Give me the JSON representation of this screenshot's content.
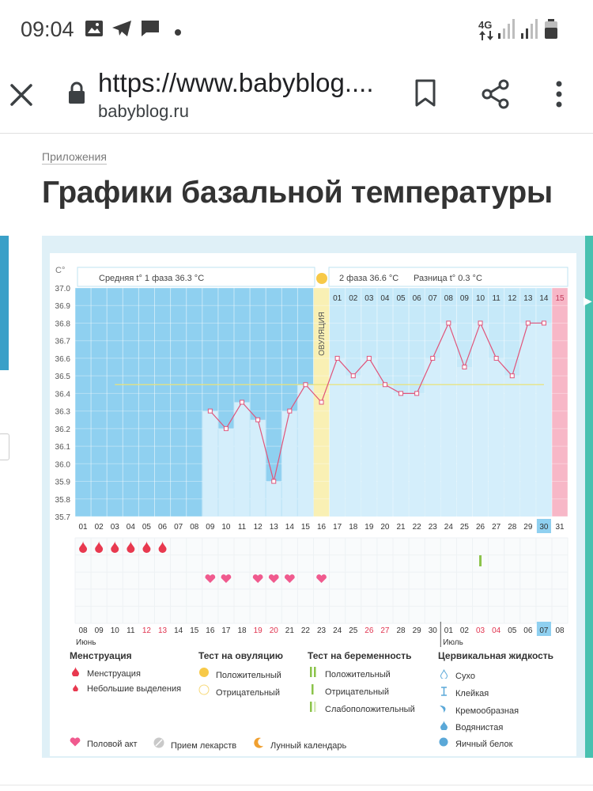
{
  "status_bar": {
    "time": "09:04",
    "network": "4G",
    "icons": [
      "gallery-icon",
      "telegram-icon",
      "message-icon",
      "dot-icon",
      "signal-icon",
      "signal-icon",
      "battery-icon"
    ]
  },
  "browser": {
    "url": "https://www.babyblog....",
    "domain": "babyblog.ru",
    "icons": [
      "close-icon",
      "lock-icon",
      "bookmark-icon",
      "share-icon",
      "more-icon"
    ]
  },
  "page": {
    "breadcrumb": "Приложения",
    "title": "Графики базальной температуры"
  },
  "chart_data": {
    "type": "line",
    "unit_label": "С°",
    "header": {
      "phase1": "Средняя t° 1 фаза 36.3 °С",
      "phase2": "2 фаза 36.6 °С",
      "diff": "Разница t° 0.3 °С"
    },
    "ovulation_label": "ОВУЛЯЦИЯ",
    "ylim": [
      35.7,
      37.0
    ],
    "yticks": [
      "37.0",
      "36.9",
      "36.8",
      "36.7",
      "36.6",
      "36.5",
      "36.4",
      "36.3",
      "36.2",
      "36.1",
      "36.0",
      "35.9",
      "35.8",
      "35.7"
    ],
    "cycle_days": [
      "01",
      "02",
      "03",
      "04",
      "05",
      "06",
      "07",
      "08",
      "09",
      "10",
      "11",
      "12",
      "13",
      "14",
      "15",
      "16",
      "17",
      "18",
      "19",
      "20",
      "21",
      "22",
      "23",
      "24",
      "25",
      "26",
      "27",
      "28",
      "29",
      "30",
      "31"
    ],
    "phase2_days": [
      "01",
      "02",
      "03",
      "04",
      "05",
      "06",
      "07",
      "08",
      "09",
      "10",
      "11",
      "12",
      "13",
      "14",
      "15"
    ],
    "ovulation_day": "16",
    "highlighted_day": "30",
    "temperatures": [
      null,
      null,
      null,
      null,
      null,
      null,
      null,
      null,
      36.3,
      36.2,
      36.35,
      36.25,
      35.9,
      36.3,
      36.45,
      36.35,
      36.6,
      36.5,
      36.6,
      36.45,
      36.4,
      36.4,
      36.6,
      36.8,
      36.55,
      36.8,
      36.6,
      36.5,
      36.8,
      36.8,
      null
    ],
    "coverline": 36.45,
    "dates": [
      "08",
      "09",
      "10",
      "11",
      "12",
      "13",
      "14",
      "15",
      "16",
      "17",
      "18",
      "19",
      "20",
      "21",
      "22",
      "23",
      "24",
      "25",
      "26",
      "27",
      "28",
      "29",
      "30",
      "01",
      "02",
      "03",
      "04",
      "05",
      "06",
      "07",
      "08"
    ],
    "red_dates": [
      "12",
      "13",
      "19",
      "20",
      "26",
      "27",
      "03",
      "04"
    ],
    "highlighted_date": "07",
    "month_labels": [
      "Июнь",
      "Июль"
    ],
    "menstruation_days": [
      "01",
      "02",
      "03",
      "04",
      "05",
      "06"
    ],
    "intercourse_days": [
      "09",
      "10",
      "12",
      "13",
      "14",
      "16"
    ],
    "pregnancy_test_negative_day": "26",
    "colors": {
      "phase1_bg": "#8fd0f0",
      "phase2_bg": "#c6e9f9",
      "bars": "#d4eefb",
      "ovulation": "#f9f0b4",
      "last_day": "#f7b7c7",
      "line": "#e0547a",
      "coverline": "#e8e27a",
      "menstruation": "#e8394f",
      "heart": "#f05a8e",
      "test_negative": "#8bc34a"
    }
  },
  "legend": {
    "menstruation": {
      "title": "Менструация",
      "items": [
        "Менструация",
        "Небольшие выделения"
      ]
    },
    "ovulation_test": {
      "title": "Тест на овуляцию",
      "items": [
        "Положительный",
        "Отрицательный"
      ]
    },
    "pregnancy_test": {
      "title": "Тест на беременность",
      "items": [
        "Положительный",
        "Отрицательный",
        "Слабоположительный"
      ]
    },
    "cervical": {
      "title": "Цервикальная жидкость",
      "items": [
        "Сухо",
        "Клейкая",
        "Кремообразная",
        "Водянистая",
        "Яичный белок"
      ]
    },
    "bottom": [
      "Половой акт",
      "Прием лекарств",
      "Лунный календарь"
    ]
  }
}
